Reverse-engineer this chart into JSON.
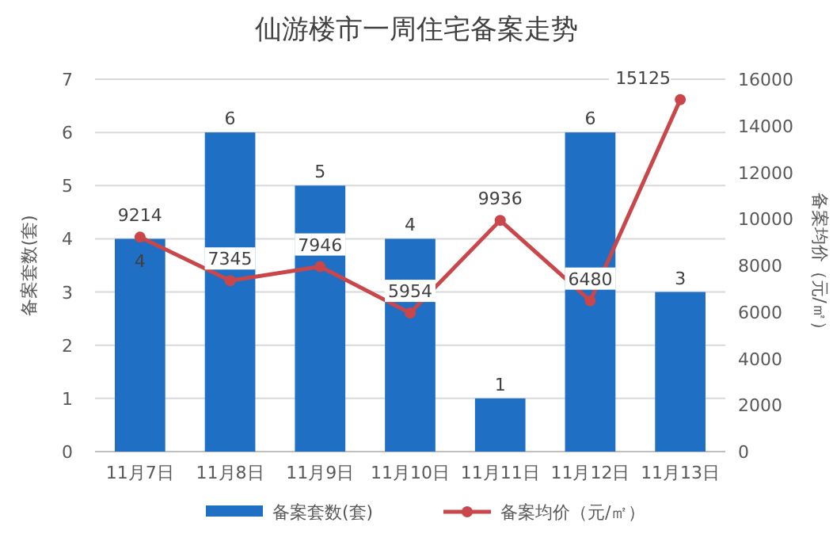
{
  "chart_data": {
    "type": "bar",
    "title": "仙游楼市一周住宅备案走势",
    "categories": [
      "11月7日",
      "11月8日",
      "11月9日",
      "11月10日",
      "11月11日",
      "11月12日",
      "11月13日"
    ],
    "series": [
      {
        "name": "备案套数(套)",
        "color": "#1f6fc5",
        "values": [
          4,
          6,
          5,
          4,
          1,
          6,
          3
        ]
      },
      {
        "name": "备案均价（元/㎡）",
        "type": "line",
        "axis": "y2",
        "color": "#c9474a",
        "values": [
          9214,
          7345,
          7946,
          5954,
          9936,
          6480,
          15125
        ]
      }
    ],
    "ylabel": "备案套数(套)",
    "y2label": "备案均价（元/㎡）",
    "ylim": [
      0,
      7
    ],
    "yticks": [
      0,
      1,
      2,
      3,
      4,
      5,
      6,
      7
    ],
    "y2lim": [
      0,
      16000
    ],
    "y2ticks": [
      0,
      2000,
      4000,
      6000,
      8000,
      10000,
      12000,
      14000,
      16000
    ],
    "grid": "y",
    "legend": "bottom",
    "marker": "circle",
    "data_labels": true
  }
}
